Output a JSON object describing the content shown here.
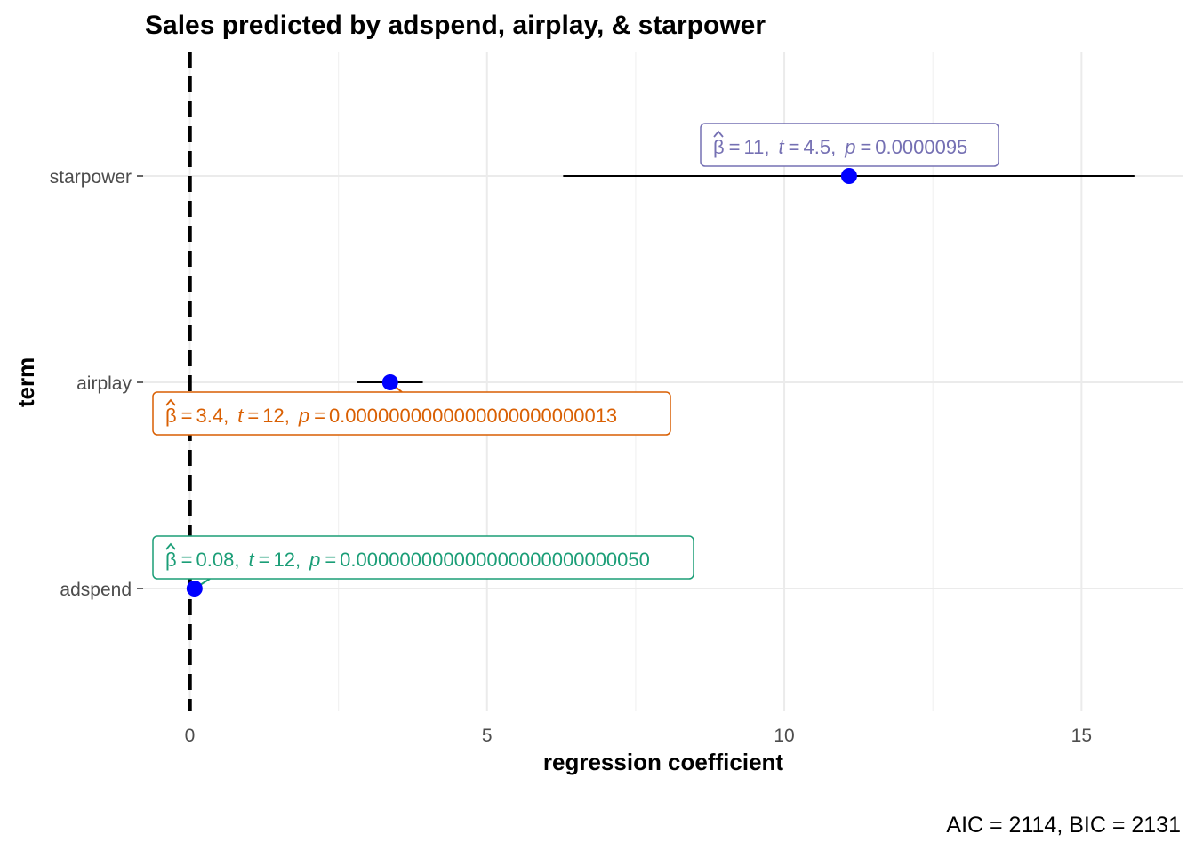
{
  "chart_data": {
    "type": "scatter",
    "subtype": "coefficient-plot",
    "title": "Sales predicted by adspend, airplay, & starpower",
    "xlabel": "regression coefficient",
    "ylabel": "term",
    "xlim": [
      -0.8,
      16.7
    ],
    "x_ticks": [
      0,
      5,
      10,
      15
    ],
    "x_tick_labels": [
      "0",
      "5",
      "10",
      "15"
    ],
    "y_categories": [
      "adspend",
      "airplay",
      "starpower"
    ],
    "grid": true,
    "reference_line": {
      "x": 0,
      "style": "dashed"
    },
    "point_color": "#0000ff",
    "terms": [
      {
        "term": "starpower",
        "estimate": 11.09,
        "conf_low": 6.28,
        "conf_high": 15.89,
        "label_color": "#7570b3",
        "label_parts": {
          "beta": "β",
          "estimate": "11",
          "t_symbol": "t",
          "t_value": "4.5",
          "p_symbol": "p",
          "p_value": "0.0000095",
          "eq": "=",
          "comma": ","
        }
      },
      {
        "term": "airplay",
        "estimate": 3.37,
        "conf_low": 2.82,
        "conf_high": 3.92,
        "label_color": "#d95f02",
        "label_parts": {
          "beta": "β",
          "estimate": "3.4",
          "t_symbol": "t",
          "t_value": "12",
          "p_symbol": "p",
          "p_value": "0.0000000000000000000000013",
          "eq": "=",
          "comma": ","
        }
      },
      {
        "term": "adspend",
        "estimate": 0.08,
        "conf_low": 0.07,
        "conf_high": 0.1,
        "label_color": "#1b9e77",
        "label_parts": {
          "beta": "β",
          "estimate": "0.08",
          "t_symbol": "t",
          "t_value": "12",
          "p_symbol": "p",
          "p_value": "0.000000000000000000000000050",
          "eq": "=",
          "comma": ","
        }
      }
    ],
    "caption": "AIC = 2114, BIC = 2131"
  }
}
